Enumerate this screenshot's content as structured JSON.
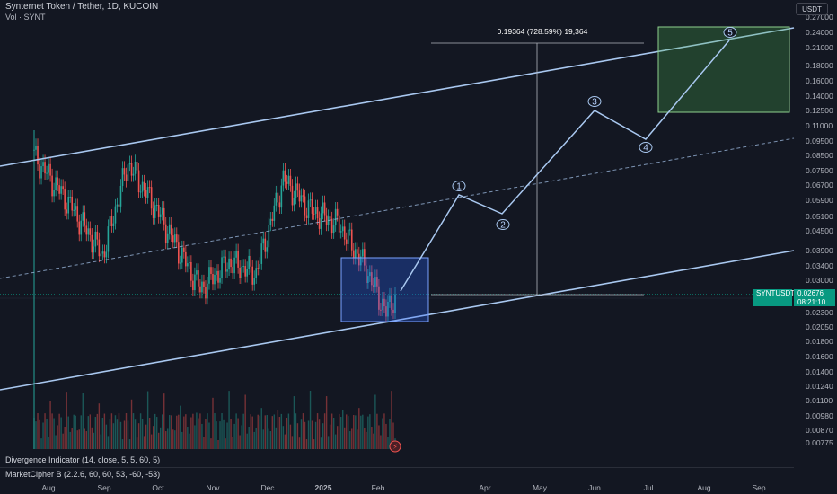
{
  "header": {
    "title": "Synternet Token / Tether, 1D, KUCOIN",
    "volume_label": "Vol · SYNT"
  },
  "currency_button": "USDT",
  "price_axis": {
    "ticks": [
      "0.27000",
      "0.24000",
      "0.21000",
      "0.18000",
      "0.16000",
      "0.14000",
      "0.12500",
      "0.11000",
      "0.09500",
      "0.08500",
      "0.07500",
      "0.06700",
      "0.05900",
      "0.05100",
      "0.04500",
      "0.03900",
      "0.03400",
      "0.03000",
      "0.02300",
      "0.02050",
      "0.01800",
      "0.01600",
      "0.01400",
      "0.01240",
      "0.01100",
      "0.00980",
      "0.00870",
      "0.00775"
    ]
  },
  "time_axis": {
    "labels": [
      "Aug",
      "Sep",
      "Oct",
      "Nov",
      "Dec",
      "2025",
      "Feb",
      "Apr",
      "May",
      "Jun",
      "Jul",
      "Aug",
      "Sep"
    ]
  },
  "current_price": {
    "symbol": "SYNTUSDT",
    "countdown": "08:21:10",
    "value": "0.02676"
  },
  "measure_label": "0.19364 (728.59%) 19,364",
  "wave_labels": [
    "1",
    "2",
    "3",
    "4",
    "5"
  ],
  "indicators": {
    "divergence": "Divergence Indicator (14, close, 5, 5, 60, 5)",
    "market_cipher": "MarketCipher B (2.2.6, 60, 60, 53, -60, -53)"
  },
  "colors": {
    "background": "#131722",
    "up": "#26a69a",
    "down": "#ef5350",
    "channel": "#a9c8f0",
    "target_box": "#4caf50",
    "accumulation_box": "#2962ff"
  },
  "chart_data": {
    "type": "candlestick",
    "title": "Synternet Token / Tether, 1D, KUCOIN",
    "y_scale": "log",
    "ylim": [
      0.00775,
      0.27
    ],
    "current_price": 0.02676,
    "projection_target": 0.22,
    "elliott_wave": [
      {
        "label": "1",
        "price": 0.059
      },
      {
        "label": "2",
        "price": 0.052
      },
      {
        "label": "3",
        "price": 0.125
      },
      {
        "label": "4",
        "price": 0.098
      },
      {
        "label": "5",
        "price": 0.24
      }
    ],
    "price_series_approx": [
      {
        "date": "2024-07-25",
        "close": 0.085
      },
      {
        "date": "2024-08-15",
        "close": 0.055
      },
      {
        "date": "2024-09-01",
        "close": 0.037
      },
      {
        "date": "2024-09-15",
        "close": 0.08
      },
      {
        "date": "2024-10-01",
        "close": 0.054
      },
      {
        "date": "2024-10-25",
        "close": 0.028
      },
      {
        "date": "2024-11-10",
        "close": 0.035
      },
      {
        "date": "2024-11-25",
        "close": 0.032
      },
      {
        "date": "2024-12-10",
        "close": 0.07
      },
      {
        "date": "2024-12-25",
        "close": 0.054
      },
      {
        "date": "2025-01-10",
        "close": 0.048
      },
      {
        "date": "2025-01-25",
        "close": 0.033
      },
      {
        "date": "2025-02-05",
        "close": 0.023
      },
      {
        "date": "2025-02-10",
        "close": 0.02676
      }
    ],
    "legend_position": "top-left"
  }
}
